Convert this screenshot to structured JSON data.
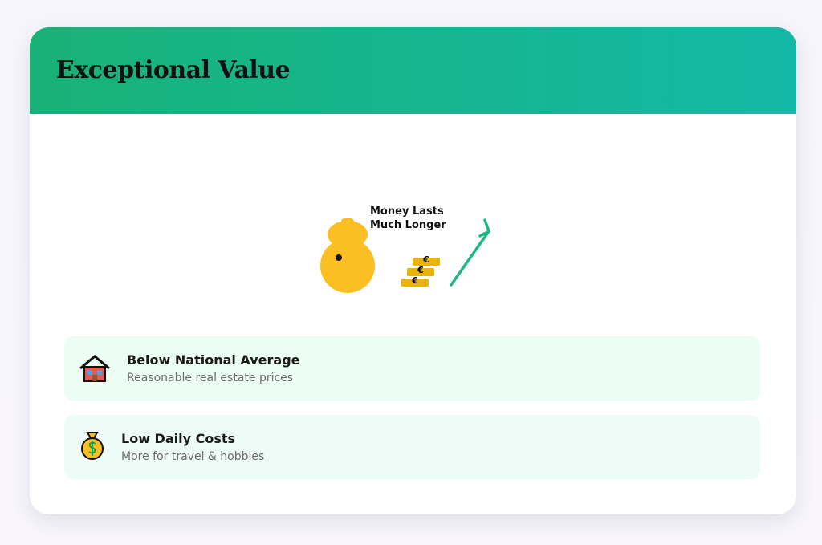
{
  "header": {
    "title": "Exceptional Value"
  },
  "illustration": {
    "label_lines": [
      "Money Lasts",
      "Much Longer"
    ],
    "coin_symbol": "€"
  },
  "items": [
    {
      "title": "Below National Average",
      "subtitle": "Reasonable real estate prices"
    },
    {
      "title": "Low Daily Costs",
      "subtitle": "More for travel & hobbies"
    }
  ]
}
